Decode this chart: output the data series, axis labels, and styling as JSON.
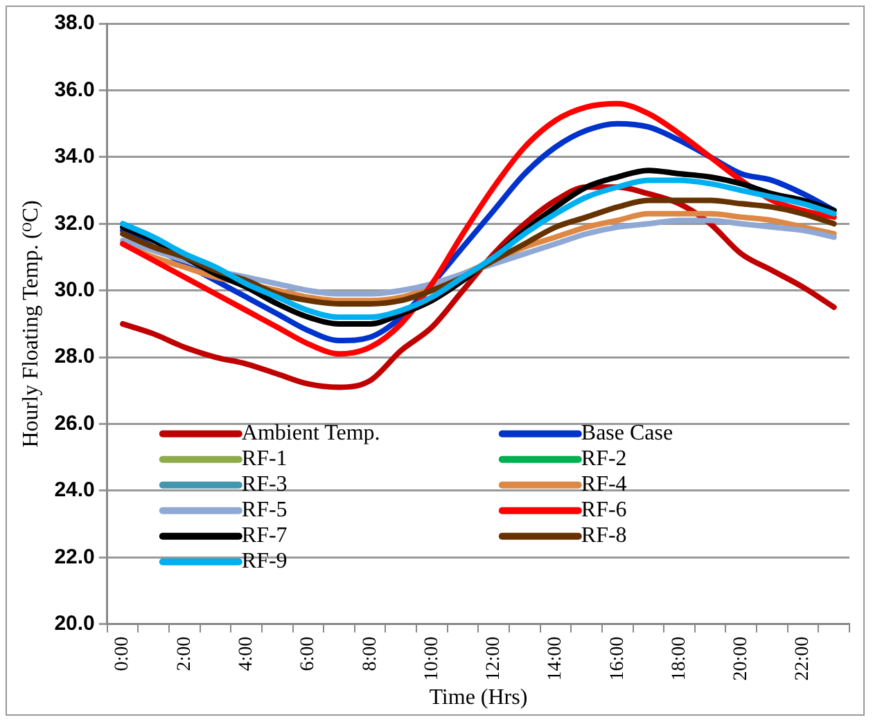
{
  "chart_data": {
    "type": "line",
    "xlabel": "Time (Hrs)",
    "ylabel": "Hourly Floating Temp. (ᴼC)",
    "categories": [
      "0:00",
      null,
      "2:00",
      null,
      "4:00",
      null,
      "6:00",
      null,
      "8:00",
      null,
      "10:00",
      null,
      "12:00",
      null,
      "14:00",
      null,
      "16:00",
      null,
      "18:00",
      null,
      "20:00",
      null,
      "22:00",
      null
    ],
    "ylim": [
      20,
      38
    ],
    "yticks": [
      {
        "value": 20,
        "label": "20.0"
      },
      {
        "value": 22,
        "label": "22.0"
      },
      {
        "value": 24,
        "label": "24.0"
      },
      {
        "value": 26,
        "label": "26.0"
      },
      {
        "value": 28,
        "label": "28.0"
      },
      {
        "value": 30,
        "label": "30.0"
      },
      {
        "value": 32,
        "label": "32.0"
      },
      {
        "value": 34,
        "label": "34.0"
      },
      {
        "value": 36,
        "label": "36.0"
      },
      {
        "value": 38,
        "label": "38.0"
      }
    ],
    "grid": "y",
    "legend": "bottom left",
    "marker": "none",
    "line_style": "solid",
    "series": [
      {
        "name": "Ambient Temp.",
        "color": "#c00000",
        "values": [
          29.0,
          28.7,
          28.3,
          28.0,
          27.8,
          27.5,
          27.2,
          27.1,
          27.3,
          28.2,
          28.9,
          30.0,
          31.1,
          32.0,
          32.7,
          33.1,
          33.1,
          32.9,
          32.6,
          32.0,
          31.1,
          30.6,
          30.1,
          29.5
        ]
      },
      {
        "name": "Base Case",
        "color": "#0033cc",
        "values": [
          31.8,
          31.3,
          30.8,
          30.3,
          29.8,
          29.3,
          28.8,
          28.5,
          28.6,
          29.2,
          30.2,
          31.3,
          32.4,
          33.5,
          34.3,
          34.8,
          35.0,
          34.9,
          34.5,
          34.0,
          33.5,
          33.3,
          32.9,
          32.4
        ]
      },
      {
        "name": "RF-1",
        "color": "#8faa4c",
        "values": [
          null,
          null,
          null,
          null,
          null,
          null,
          null,
          null,
          null,
          null,
          null,
          null,
          null,
          null,
          null,
          null,
          null,
          null,
          null,
          null,
          null,
          null,
          null,
          null
        ]
      },
      {
        "name": "RF-2",
        "color": "#00b050",
        "values": [
          null,
          null,
          null,
          null,
          null,
          null,
          null,
          null,
          null,
          null,
          null,
          null,
          null,
          null,
          null,
          null,
          null,
          null,
          null,
          null,
          null,
          null,
          null,
          null
        ]
      },
      {
        "name": "RF-3",
        "color": "#4196b0",
        "values": [
          null,
          null,
          null,
          null,
          null,
          null,
          null,
          null,
          null,
          null,
          null,
          null,
          null,
          null,
          null,
          null,
          null,
          null,
          null,
          null,
          null,
          null,
          null,
          null
        ]
      },
      {
        "name": "RF-4",
        "color": "#dd8844",
        "values": [
          31.4,
          31.0,
          30.7,
          30.4,
          30.2,
          30.0,
          29.8,
          29.7,
          29.7,
          29.8,
          30.1,
          30.5,
          30.9,
          31.3,
          31.6,
          31.9,
          32.1,
          32.3,
          32.3,
          32.3,
          32.2,
          32.1,
          31.9,
          31.7
        ]
      },
      {
        "name": "RF-5",
        "color": "#8fa8d4",
        "values": [
          31.5,
          31.2,
          30.9,
          30.6,
          30.4,
          30.2,
          30.0,
          29.9,
          29.9,
          30.0,
          30.2,
          30.5,
          30.8,
          31.1,
          31.4,
          31.7,
          31.9,
          32.0,
          32.1,
          32.1,
          32.0,
          31.9,
          31.8,
          31.6
        ]
      },
      {
        "name": "RF-6",
        "color": "#ff0000",
        "values": [
          31.4,
          30.9,
          30.4,
          29.9,
          29.4,
          28.9,
          28.4,
          28.1,
          28.3,
          29.0,
          30.2,
          31.7,
          33.1,
          34.3,
          35.1,
          35.5,
          35.6,
          35.3,
          34.7,
          34.0,
          33.3,
          32.7,
          32.4,
          32.2
        ]
      },
      {
        "name": "RF-7",
        "color": "#000000",
        "values": [
          31.9,
          31.5,
          31.0,
          30.5,
          30.1,
          29.6,
          29.2,
          29.0,
          29.0,
          29.3,
          29.7,
          30.3,
          31.0,
          31.8,
          32.5,
          33.1,
          33.4,
          33.6,
          33.5,
          33.4,
          33.2,
          32.9,
          32.7,
          32.4
        ]
      },
      {
        "name": "RF-8",
        "color": "#663300",
        "values": [
          31.7,
          31.3,
          31.0,
          30.6,
          30.3,
          29.9,
          29.7,
          29.6,
          29.6,
          29.7,
          30.0,
          30.4,
          30.9,
          31.4,
          31.9,
          32.2,
          32.5,
          32.7,
          32.7,
          32.7,
          32.6,
          32.5,
          32.3,
          32.0
        ]
      },
      {
        "name": "RF-9",
        "color": "#00b0f0",
        "values": [
          32.0,
          31.6,
          31.1,
          30.7,
          30.2,
          29.8,
          29.4,
          29.2,
          29.2,
          29.4,
          29.8,
          30.4,
          31.0,
          31.7,
          32.3,
          32.8,
          33.1,
          33.3,
          33.3,
          33.2,
          33.0,
          32.8,
          32.6,
          32.3
        ]
      }
    ]
  }
}
